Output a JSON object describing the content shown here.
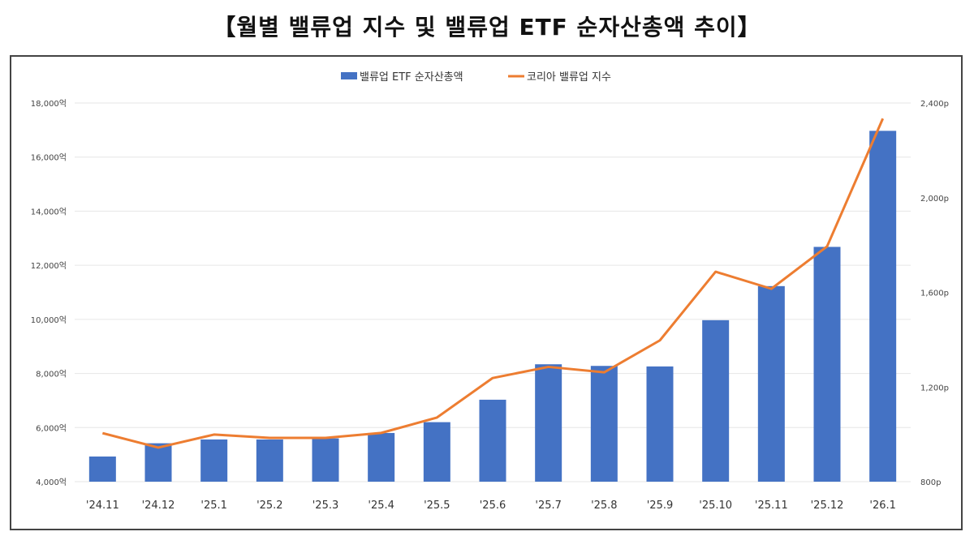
{
  "chart_data": {
    "type": "bar+line",
    "title": "【월별 밸류업 지수 및 밸류업 ETF 순자산총액 추이】",
    "categories": [
      "'24.11",
      "'24.12",
      "'25.1",
      "'25.2",
      "'25.3",
      "'25.4",
      "'25.5",
      "'25.6",
      "'25.7",
      "'25.8",
      "'25.9",
      "'25.10",
      "'25.11",
      "'25.12",
      "'26.1"
    ],
    "series": [
      {
        "name": "밸류업 ETF 순자산총액",
        "type": "bar",
        "axis": "left",
        "color": "#4472C4",
        "values": [
          4930,
          5420,
          5560,
          5560,
          5600,
          5800,
          6200,
          7030,
          8340,
          8280,
          8260,
          9970,
          11230,
          12680,
          16970
        ]
      },
      {
        "name": "코리아 밸류업 지수",
        "type": "line",
        "axis": "right",
        "color": "#ED7D31",
        "values": [
          1005,
          944,
          999,
          985,
          985,
          1006,
          1071,
          1238,
          1285,
          1262,
          1397,
          1687,
          1615,
          1794,
          2334
        ]
      }
    ],
    "left_axis": {
      "ylim": [
        4000,
        18000
      ],
      "ticks": [
        4000,
        6000,
        8000,
        10000,
        12000,
        14000,
        16000,
        18000
      ],
      "tick_labels": [
        "4,000억",
        "6,000억",
        "8,000억",
        "10,000억",
        "12,000억",
        "14,000억",
        "16,000억",
        "18,000억"
      ]
    },
    "right_axis": {
      "ylim": [
        800,
        2400
      ],
      "ticks": [
        800,
        1200,
        1600,
        2000,
        2400
      ],
      "tick_labels": [
        "800p",
        "1,200p",
        "1,600p",
        "2,000p",
        "2,400p"
      ]
    },
    "grid": true,
    "legend": "top-center"
  }
}
